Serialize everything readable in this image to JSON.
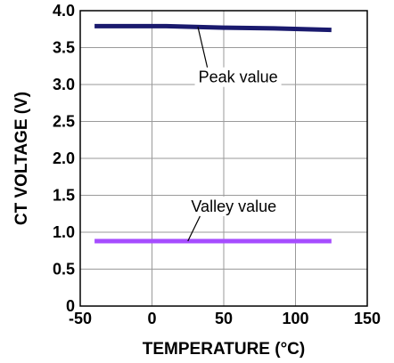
{
  "chart_data": {
    "type": "line",
    "title": "",
    "xlabel": "TEMPERATURE (°C)",
    "ylabel": "CT VOLTAGE (V)",
    "xlim": [
      -50,
      150
    ],
    "ylim": [
      0,
      4.0
    ],
    "xticks": [
      -50,
      0,
      50,
      100,
      150
    ],
    "yticks": [
      0,
      0.5,
      1.0,
      1.5,
      2.0,
      2.5,
      3.0,
      3.5,
      4.0
    ],
    "xtick_labels": [
      "-50",
      "0",
      "50",
      "100",
      "150"
    ],
    "ytick_labels": [
      "0",
      "0.5",
      "1.0",
      "1.5",
      "2.0",
      "2.5",
      "3.0",
      "3.5",
      "4.0"
    ],
    "grid": true,
    "legend": "none",
    "series": [
      {
        "name": "Peak value",
        "color": "#1a1a6e",
        "x": [
          -40,
          10,
          50,
          85,
          125
        ],
        "y": [
          3.79,
          3.79,
          3.77,
          3.76,
          3.74
        ]
      },
      {
        "name": "Valley value",
        "color": "#a64dff",
        "x": [
          -40,
          0,
          50,
          100,
          125
        ],
        "y": [
          0.88,
          0.88,
          0.88,
          0.88,
          0.88
        ]
      }
    ],
    "annotations": [
      {
        "text": "Peak value",
        "series": "Peak value",
        "x_point": 32,
        "y_point": 3.78,
        "x_label": 60,
        "y_label": 3.1
      },
      {
        "text": "Valley value",
        "series": "Valley value",
        "x_point": 25,
        "y_point": 0.88,
        "x_label": 57,
        "y_label": 1.35
      }
    ]
  }
}
